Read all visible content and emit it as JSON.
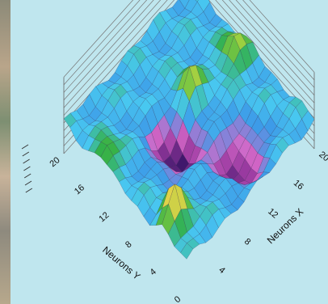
{
  "chart_data": {
    "type": "surface",
    "title": "",
    "xlabel": "Neurons X",
    "ylabel": "Neurons Y",
    "x_ticks": [
      "0",
      "4",
      "8",
      "12",
      "16",
      "20"
    ],
    "y_ticks": [
      "0",
      "4",
      "8",
      "12",
      "16",
      "20"
    ],
    "xlim": [
      0,
      20
    ],
    "ylim": [
      0,
      20
    ],
    "grid": true,
    "colormap": [
      "#2a1060",
      "#9a3aa0",
      "#d468c8",
      "#3d9be8",
      "#48c8f0",
      "#32b048",
      "#9ad040",
      "#e8d24a",
      "#f08a30",
      "#ffd070"
    ],
    "surface_features": [
      {
        "kind": "peak",
        "x": 2,
        "y": 4,
        "value": 0.95
      },
      {
        "kind": "peak",
        "x": 12,
        "y": 12,
        "value": 0.85
      },
      {
        "kind": "peak",
        "x": 18,
        "y": 11,
        "value": 0.78
      },
      {
        "kind": "peak",
        "x": 1,
        "y": 14,
        "value": 0.7
      },
      {
        "kind": "valley",
        "x": 8,
        "y": 10,
        "value": 0.0
      },
      {
        "kind": "valley",
        "x": 12,
        "y": 4,
        "value": 0.05
      }
    ]
  },
  "colors": {
    "background": "#bfe6ee",
    "photo_strip": "#9e9482"
  }
}
